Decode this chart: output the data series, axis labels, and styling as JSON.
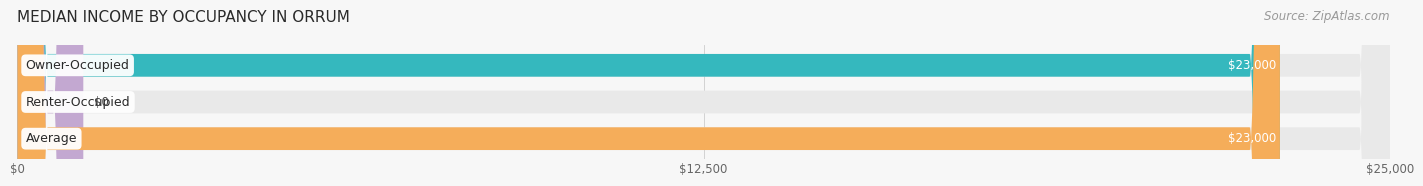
{
  "title": "MEDIAN INCOME BY OCCUPANCY IN ORRUM",
  "source": "Source: ZipAtlas.com",
  "categories": [
    "Owner-Occupied",
    "Renter-Occupied",
    "Average"
  ],
  "values": [
    23000,
    0,
    23000
  ],
  "max_value": 25000,
  "bar_colors": [
    "#35b8be",
    "#c3a8d1",
    "#f5ad5a"
  ],
  "bar_bg_color": "#e9e9e9",
  "value_labels": [
    "$23,000",
    "$0",
    "$23,000"
  ],
  "x_ticks": [
    0,
    12500,
    25000
  ],
  "x_tick_labels": [
    "$0",
    "$12,500",
    "$25,000"
  ],
  "title_fontsize": 11,
  "source_fontsize": 8.5,
  "label_fontsize": 9,
  "value_fontsize": 8.5,
  "tick_fontsize": 8.5,
  "bg_color": "#f7f7f7",
  "bar_height": 0.62,
  "renter_small_bar_width": 1200
}
